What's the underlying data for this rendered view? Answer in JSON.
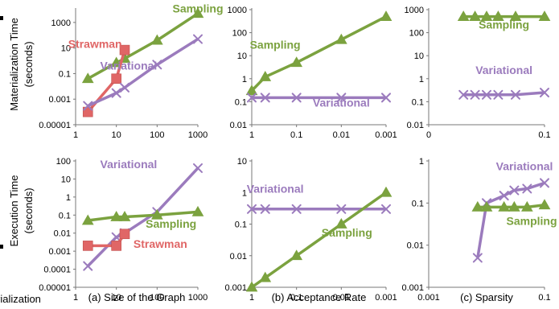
{
  "figure": {
    "row_ylabels": [
      [
        "Materialization Time",
        "(seconds)"
      ],
      [
        "Execution Time",
        "(seconds)"
      ]
    ],
    "left_cut_text": "rialization",
    "colors": {
      "Sampling": "#7ba23f",
      "Variational": "#9b7bbd",
      "Strawman": "#e06666"
    }
  },
  "chart_data": [
    {
      "type": "line",
      "panel": "a-top",
      "xscale": "log",
      "xlim": [
        1,
        1000
      ],
      "xticks": [
        "1",
        "10",
        "100",
        "1000"
      ],
      "yscale": "log",
      "ylim": [
        1e-05,
        10000
      ],
      "yticks": [
        "0.00001",
        "0.001",
        "0.1",
        "10",
        "1000"
      ],
      "caption": "",
      "series": [
        {
          "name": "Sampling",
          "marker": "triangle",
          "x": [
            2,
            10,
            16,
            100,
            1000
          ],
          "y": [
            0.04,
            0.7,
            1.5,
            40,
            5000
          ],
          "label_at": [
            1000,
            6000
          ]
        },
        {
          "name": "Strawman",
          "marker": "square",
          "x": [
            2,
            10,
            16
          ],
          "y": [
            0.0001,
            0.04,
            7
          ],
          "label_at": [
            3,
            10
          ]
        },
        {
          "name": "Variational",
          "marker": "x",
          "x": [
            2,
            10,
            16,
            100,
            1000
          ],
          "y": [
            0.0003,
            0.003,
            0.008,
            0.5,
            50
          ],
          "label_at": [
            20,
            0.2
          ]
        }
      ]
    },
    {
      "type": "line",
      "panel": "b-top",
      "xscale": "log",
      "xreverse": true,
      "xlim": [
        1,
        0.001
      ],
      "xticks": [
        "1",
        "0.1",
        "0.01",
        "0.001"
      ],
      "yscale": "log",
      "ylim": [
        0.01,
        1000
      ],
      "yticks": [
        "0.01",
        "0.1",
        "1",
        "10",
        "100",
        "1000"
      ],
      "caption": "",
      "series": [
        {
          "name": "Sampling",
          "marker": "triangle",
          "x": [
            1,
            0.5,
            0.1,
            0.01,
            0.001
          ],
          "y": [
            0.3,
            1.2,
            5,
            50,
            500
          ],
          "label_at": [
            0.3,
            20
          ]
        },
        {
          "name": "Variational",
          "marker": "x",
          "x": [
            1,
            0.5,
            0.1,
            0.01,
            0.001
          ],
          "y": [
            0.15,
            0.15,
            0.15,
            0.15,
            0.15
          ],
          "label_at": [
            0.01,
            0.06
          ]
        }
      ]
    },
    {
      "type": "line",
      "panel": "c-top",
      "xscale": "linear",
      "xlim": [
        0,
        0.1
      ],
      "xticks": [
        "0",
        "0.1"
      ],
      "yscale": "log",
      "ylim": [
        0.01,
        1000
      ],
      "yticks": [
        "0.01",
        "0.1",
        "1",
        "10",
        "100",
        "1000"
      ],
      "caption": "",
      "series": [
        {
          "name": "Sampling",
          "marker": "triangle",
          "x": [
            0.03,
            0.04,
            0.05,
            0.06,
            0.075,
            0.1
          ],
          "y": [
            500,
            500,
            500,
            500,
            500,
            500
          ],
          "label_at": [
            0.065,
            150
          ]
        },
        {
          "name": "Variational",
          "marker": "x",
          "x": [
            0.03,
            0.04,
            0.05,
            0.06,
            0.075,
            0.1
          ],
          "y": [
            0.2,
            0.2,
            0.2,
            0.2,
            0.2,
            0.25
          ],
          "label_at": [
            0.065,
            1.6
          ]
        }
      ]
    },
    {
      "type": "line",
      "panel": "a-bottom",
      "xscale": "log",
      "xlim": [
        1,
        1000
      ],
      "xticks": [
        "1",
        "10",
        "100",
        "1000"
      ],
      "yscale": "log",
      "ylim": [
        1e-05,
        100
      ],
      "yticks": [
        "0.00001",
        "0.0001",
        "0.001",
        "0.01",
        "0.1",
        "1",
        "10",
        "100"
      ],
      "caption": "(a) Size of the Graph",
      "series": [
        {
          "name": "Variational",
          "marker": "x",
          "x": [
            2,
            10,
            16,
            100,
            1000
          ],
          "y": [
            0.00015,
            0.006,
            0.01,
            0.15,
            40
          ],
          "label_at": [
            20,
            40
          ]
        },
        {
          "name": "Sampling",
          "marker": "triangle",
          "x": [
            2,
            10,
            16,
            100,
            1000
          ],
          "y": [
            0.05,
            0.08,
            0.08,
            0.1,
            0.15
          ],
          "label_at": [
            220,
            0.02
          ]
        },
        {
          "name": "Strawman",
          "marker": "square",
          "x": [
            2,
            10,
            16
          ],
          "y": [
            0.002,
            0.002,
            0.009
          ],
          "label_at": [
            120,
            0.0015
          ]
        }
      ]
    },
    {
      "type": "line",
      "panel": "b-bottom",
      "xscale": "log",
      "xreverse": true,
      "xlim": [
        1,
        0.001
      ],
      "xticks": [
        "1",
        "0.1",
        "0.01",
        "0.001"
      ],
      "yscale": "log",
      "ylim": [
        0.001,
        10
      ],
      "yticks": [
        "0.001",
        "0.01",
        "0.1",
        "1",
        "10"
      ],
      "caption": "(b) Acceptance Rate",
      "series": [
        {
          "name": "Variational",
          "marker": "x",
          "x": [
            1,
            0.5,
            0.1,
            0.01,
            0.001
          ],
          "y": [
            0.3,
            0.3,
            0.3,
            0.3,
            0.3
          ],
          "label_at": [
            0.3,
            1
          ]
        },
        {
          "name": "Sampling",
          "marker": "triangle",
          "x": [
            1,
            0.5,
            0.1,
            0.01,
            0.001
          ],
          "y": [
            0.001,
            0.002,
            0.01,
            0.1,
            1
          ],
          "label_at": [
            0.0075,
            0.04
          ]
        }
      ]
    },
    {
      "type": "line",
      "panel": "c-bottom",
      "xscale": "log",
      "xlim": [
        0.001,
        0.1
      ],
      "xticks": [
        "0.001",
        "0.1"
      ],
      "yscale": "log",
      "ylim": [
        0.001,
        1
      ],
      "yticks": [
        "0.001",
        "0.01",
        "0.1",
        "1"
      ],
      "caption": "(c) Sparsity",
      "series": [
        {
          "name": "Variational",
          "marker": "x",
          "x": [
            0.007,
            0.01,
            0.02,
            0.03,
            0.05,
            0.1
          ],
          "y": [
            0.005,
            0.1,
            0.15,
            0.2,
            0.22,
            0.3
          ],
          "label_at": [
            0.045,
            0.6
          ]
        },
        {
          "name": "Sampling",
          "marker": "triangle",
          "x": [
            0.007,
            0.01,
            0.02,
            0.03,
            0.05,
            0.1
          ],
          "y": [
            0.08,
            0.08,
            0.08,
            0.08,
            0.08,
            0.09
          ],
          "label_at": [
            0.06,
            0.03
          ]
        }
      ]
    }
  ]
}
